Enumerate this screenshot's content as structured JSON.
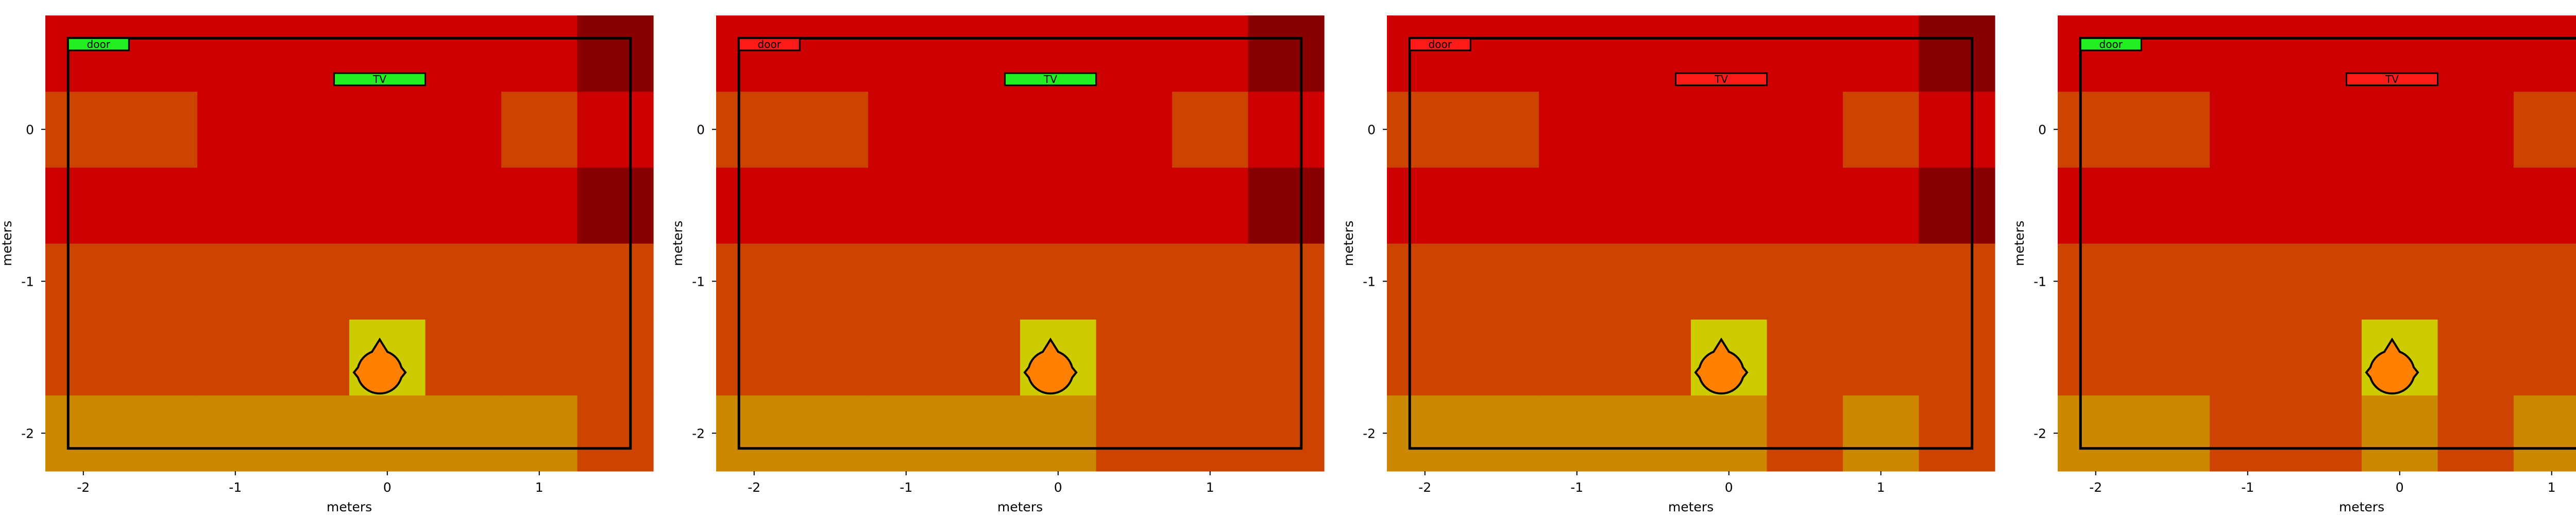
{
  "chart_data": [
    {
      "type": "heatmap",
      "xlabel": "meters",
      "ylabel": "meters",
      "xlim": [
        -2.25,
        1.75
      ],
      "ylim": [
        -2.25,
        0.75
      ],
      "x_ticks": [
        -2,
        -1,
        0,
        1
      ],
      "y_ticks": [
        -2,
        -1,
        0
      ],
      "x_edges": [
        -2.25,
        -1.25,
        -0.25,
        0.25,
        0.75,
        1.25,
        1.75
      ],
      "y_edges": [
        -2.25,
        -1.75,
        -1.25,
        -0.75,
        -0.25,
        0.25,
        0.75
      ],
      "cells": [
        [
          "#cc8800",
          "#cc8800",
          "#cc8800",
          "#cc8800",
          "#cc8800",
          "#cc4400"
        ],
        [
          "#cc4400",
          "#cc4400",
          "#cccc00",
          "#cc4400",
          "#cc4400",
          "#cc4400"
        ],
        [
          "#cc4400",
          "#cc4400",
          "#cc4400",
          "#cc4400",
          "#cc4400",
          "#cc4400"
        ],
        [
          "#cc0000",
          "#cc0000",
          "#cc0000",
          "#cc0000",
          "#cc0000",
          "#880000"
        ],
        [
          "#cc4400",
          "#cc0000",
          "#cc0000",
          "#cc0000",
          "#cc4400",
          "#cc0000"
        ],
        [
          "#cc0000",
          "#cc0000",
          "#cc0000",
          "#cc0000",
          "#cc0000",
          "#880000"
        ]
      ],
      "room_x": [
        -2.1,
        1.6
      ],
      "room_y": [
        -2.1,
        0.6
      ],
      "door": {
        "label": "door",
        "x": [
          -2.1,
          -1.7
        ],
        "y": [
          0.52,
          0.6
        ],
        "fill": "#22ee22"
      },
      "tv": {
        "label": "TV",
        "x": [
          -0.35,
          0.25
        ],
        "y": [
          0.29,
          0.37
        ],
        "fill": "#22ee22"
      },
      "person": {
        "x": -0.05,
        "y": -1.6,
        "color": "#ff8000"
      }
    },
    {
      "type": "heatmap",
      "xlabel": "meters",
      "ylabel": "meters",
      "xlim": [
        -2.25,
        1.75
      ],
      "ylim": [
        -2.25,
        0.75
      ],
      "x_ticks": [
        -2,
        -1,
        0,
        1
      ],
      "y_ticks": [
        -2,
        -1,
        0
      ],
      "x_edges": [
        -2.25,
        -1.25,
        -0.25,
        0.25,
        0.75,
        1.25,
        1.75
      ],
      "y_edges": [
        -2.25,
        -1.75,
        -1.25,
        -0.75,
        -0.25,
        0.25,
        0.75
      ],
      "cells": [
        [
          "#cc8800",
          "#cc8800",
          "#cc8800",
          "#cc4400",
          "#cc4400",
          "#cc4400"
        ],
        [
          "#cc4400",
          "#cc4400",
          "#cccc00",
          "#cc4400",
          "#cc4400",
          "#cc4400"
        ],
        [
          "#cc4400",
          "#cc4400",
          "#cc4400",
          "#cc4400",
          "#cc4400",
          "#cc4400"
        ],
        [
          "#cc0000",
          "#cc0000",
          "#cc0000",
          "#cc0000",
          "#cc0000",
          "#880000"
        ],
        [
          "#cc4400",
          "#cc0000",
          "#cc0000",
          "#cc0000",
          "#cc4400",
          "#cc0000"
        ],
        [
          "#cc0000",
          "#cc0000",
          "#cc0000",
          "#cc0000",
          "#cc0000",
          "#880000"
        ]
      ],
      "room_x": [
        -2.1,
        1.6
      ],
      "room_y": [
        -2.1,
        0.6
      ],
      "door": {
        "label": "door",
        "x": [
          -2.1,
          -1.7
        ],
        "y": [
          0.52,
          0.6
        ],
        "fill": "#ff1a1a"
      },
      "tv": {
        "label": "TV",
        "x": [
          -0.35,
          0.25
        ],
        "y": [
          0.29,
          0.37
        ],
        "fill": "#22ee22"
      },
      "person": {
        "x": -0.05,
        "y": -1.6,
        "color": "#ff8000"
      }
    },
    {
      "type": "heatmap",
      "xlabel": "meters",
      "ylabel": "meters",
      "xlim": [
        -2.25,
        1.75
      ],
      "ylim": [
        -2.25,
        0.75
      ],
      "x_ticks": [
        -2,
        -1,
        0,
        1
      ],
      "y_ticks": [
        -2,
        -1,
        0
      ],
      "x_edges": [
        -2.25,
        -1.25,
        -0.25,
        0.25,
        0.75,
        1.25,
        1.75
      ],
      "y_edges": [
        -2.25,
        -1.75,
        -1.25,
        -0.75,
        -0.25,
        0.25,
        0.75
      ],
      "cells": [
        [
          "#cc8800",
          "#cc8800",
          "#cc8800",
          "#cc4400",
          "#cc8800",
          "#cc4400"
        ],
        [
          "#cc4400",
          "#cc4400",
          "#cccc00",
          "#cc4400",
          "#cc4400",
          "#cc4400"
        ],
        [
          "#cc4400",
          "#cc4400",
          "#cc4400",
          "#cc4400",
          "#cc4400",
          "#cc4400"
        ],
        [
          "#cc0000",
          "#cc0000",
          "#cc0000",
          "#cc0000",
          "#cc0000",
          "#880000"
        ],
        [
          "#cc4400",
          "#cc0000",
          "#cc0000",
          "#cc0000",
          "#cc4400",
          "#cc0000"
        ],
        [
          "#cc0000",
          "#cc0000",
          "#cc0000",
          "#cc0000",
          "#cc0000",
          "#880000"
        ]
      ],
      "room_x": [
        -2.1,
        1.6
      ],
      "room_y": [
        -2.1,
        0.6
      ],
      "door": {
        "label": "door",
        "x": [
          -2.1,
          -1.7
        ],
        "y": [
          0.52,
          0.6
        ],
        "fill": "#ff1a1a"
      },
      "tv": {
        "label": "TV",
        "x": [
          -0.35,
          0.25
        ],
        "y": [
          0.29,
          0.37
        ],
        "fill": "#ff1a1a"
      },
      "person": {
        "x": -0.05,
        "y": -1.6,
        "color": "#ff8000"
      }
    },
    {
      "type": "heatmap",
      "xlabel": "meters",
      "ylabel": "meters",
      "xlim": [
        -2.25,
        1.75
      ],
      "ylim": [
        -2.25,
        0.75
      ],
      "x_ticks": [
        -2,
        -1,
        0,
        1
      ],
      "y_ticks": [
        -2,
        -1,
        0
      ],
      "x_edges": [
        -2.25,
        -1.25,
        -0.75,
        -0.25,
        0.25,
        0.75,
        1.25,
        1.75
      ],
      "y_edges": [
        -2.25,
        -1.75,
        -1.25,
        -0.75,
        -0.25,
        0.25,
        0.75
      ],
      "cells": [
        [
          "#cc8800",
          "#cc4400",
          "#cc4400",
          "#cc8800",
          "#cc4400",
          "#cc8800",
          "#cc4400"
        ],
        [
          "#cc4400",
          "#cc4400",
          "#cc4400",
          "#cccc00",
          "#cc4400",
          "#cc4400",
          "#cc4400"
        ],
        [
          "#cc4400",
          "#cc4400",
          "#cc4400",
          "#cc4400",
          "#cc4400",
          "#cc4400",
          "#cc4400"
        ],
        [
          "#cc0000",
          "#cc0000",
          "#cc0000",
          "#cc0000",
          "#cc0000",
          "#cc0000",
          "#880000"
        ],
        [
          "#cc4400",
          "#cc0000",
          "#cc0000",
          "#cc0000",
          "#cc0000",
          "#cc4400",
          "#cc0000"
        ],
        [
          "#cc0000",
          "#cc0000",
          "#cc0000",
          "#cc0000",
          "#cc0000",
          "#cc0000",
          "#880000"
        ]
      ],
      "room_x": [
        -2.1,
        1.6
      ],
      "room_y": [
        -2.1,
        0.6
      ],
      "door": {
        "label": "door",
        "x": [
          -2.1,
          -1.7
        ],
        "y": [
          0.52,
          0.6
        ],
        "fill": "#22ee22"
      },
      "tv": {
        "label": "TV",
        "x": [
          -0.35,
          0.25
        ],
        "y": [
          0.29,
          0.37
        ],
        "fill": "#ff1a1a"
      },
      "person": {
        "x": -0.05,
        "y": -1.6,
        "color": "#ff8000"
      }
    }
  ]
}
